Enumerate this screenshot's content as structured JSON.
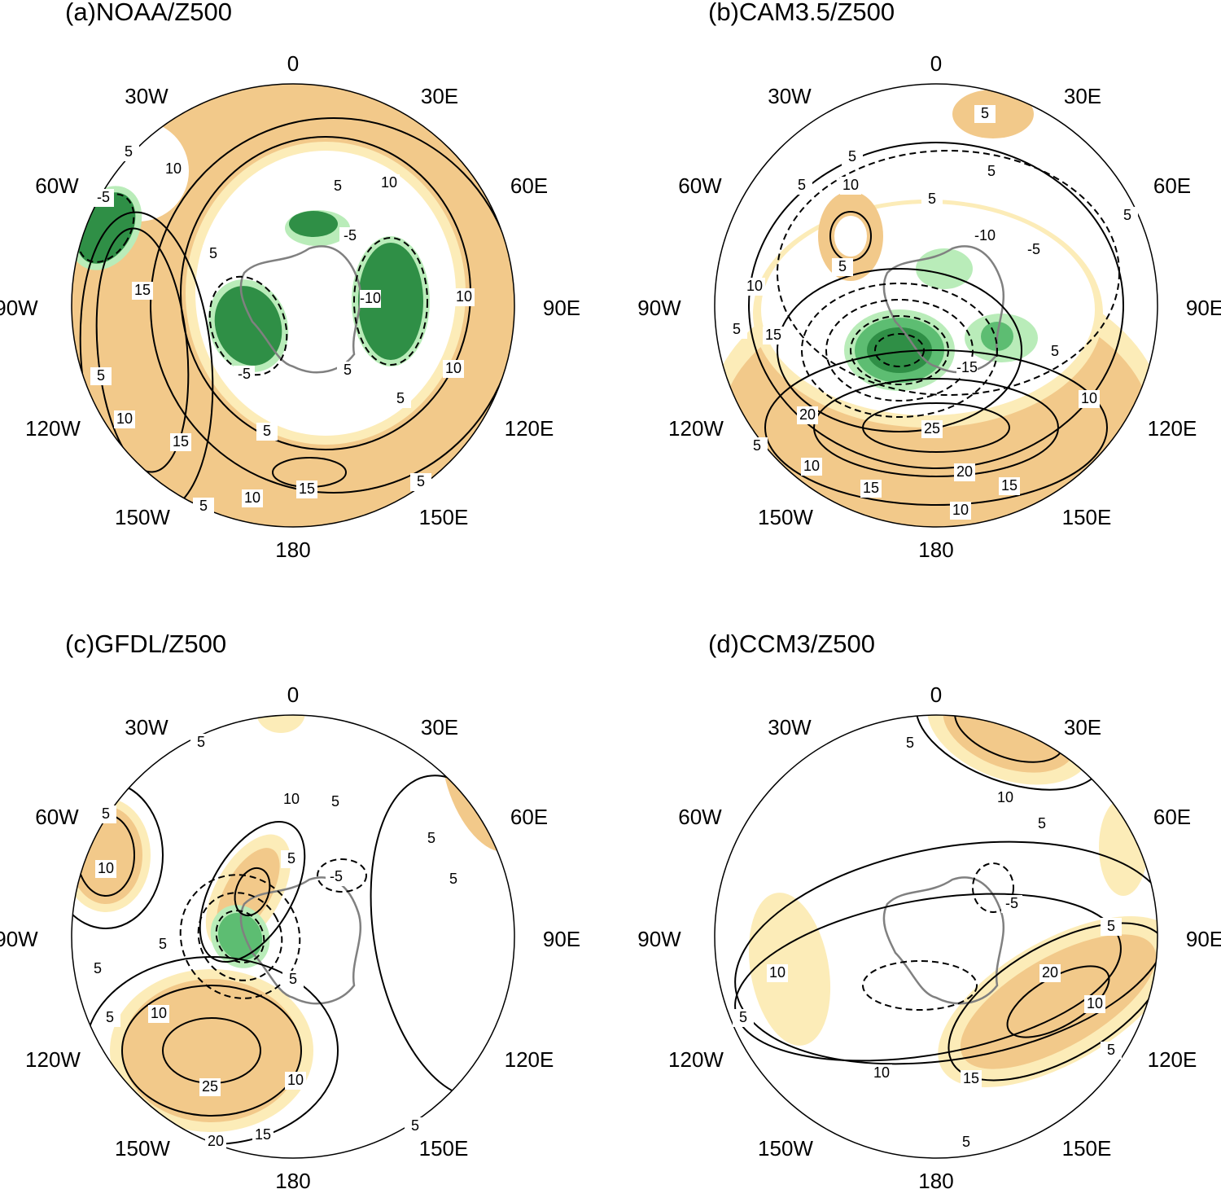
{
  "panels": [
    {
      "title": "(a)NOAA/Z500",
      "contour_labels": [
        -5,
        5,
        10,
        5,
        10,
        -5,
        5,
        15,
        -10,
        10,
        5,
        10,
        15,
        -5,
        5,
        10,
        5,
        5,
        10,
        5,
        15,
        5
      ]
    },
    {
      "title": "(b)CAM3.5/Z500",
      "contour_labels": [
        5,
        5,
        5,
        10,
        5,
        -10,
        -5,
        5,
        5,
        5,
        10,
        5,
        15,
        5,
        -15,
        20,
        25,
        10,
        5,
        10,
        15,
        20,
        15,
        10
      ]
    },
    {
      "title": "(c)GFDL/Z500",
      "contour_labels": [
        5,
        10,
        5,
        5,
        10,
        5,
        5,
        5,
        -5,
        5,
        5,
        5,
        10,
        5,
        25,
        10,
        20,
        15,
        5
      ]
    },
    {
      "title": "(d)CCM3/Z500",
      "contour_labels": [
        5,
        10,
        5,
        -5,
        5,
        10,
        5,
        20,
        10,
        5,
        10,
        15,
        5
      ]
    }
  ],
  "longitude_labels": [
    "0",
    "30W",
    "30E",
    "60W",
    "60E",
    "90W",
    "90E",
    "120W",
    "120E",
    "150W",
    "150E",
    "180"
  ]
}
